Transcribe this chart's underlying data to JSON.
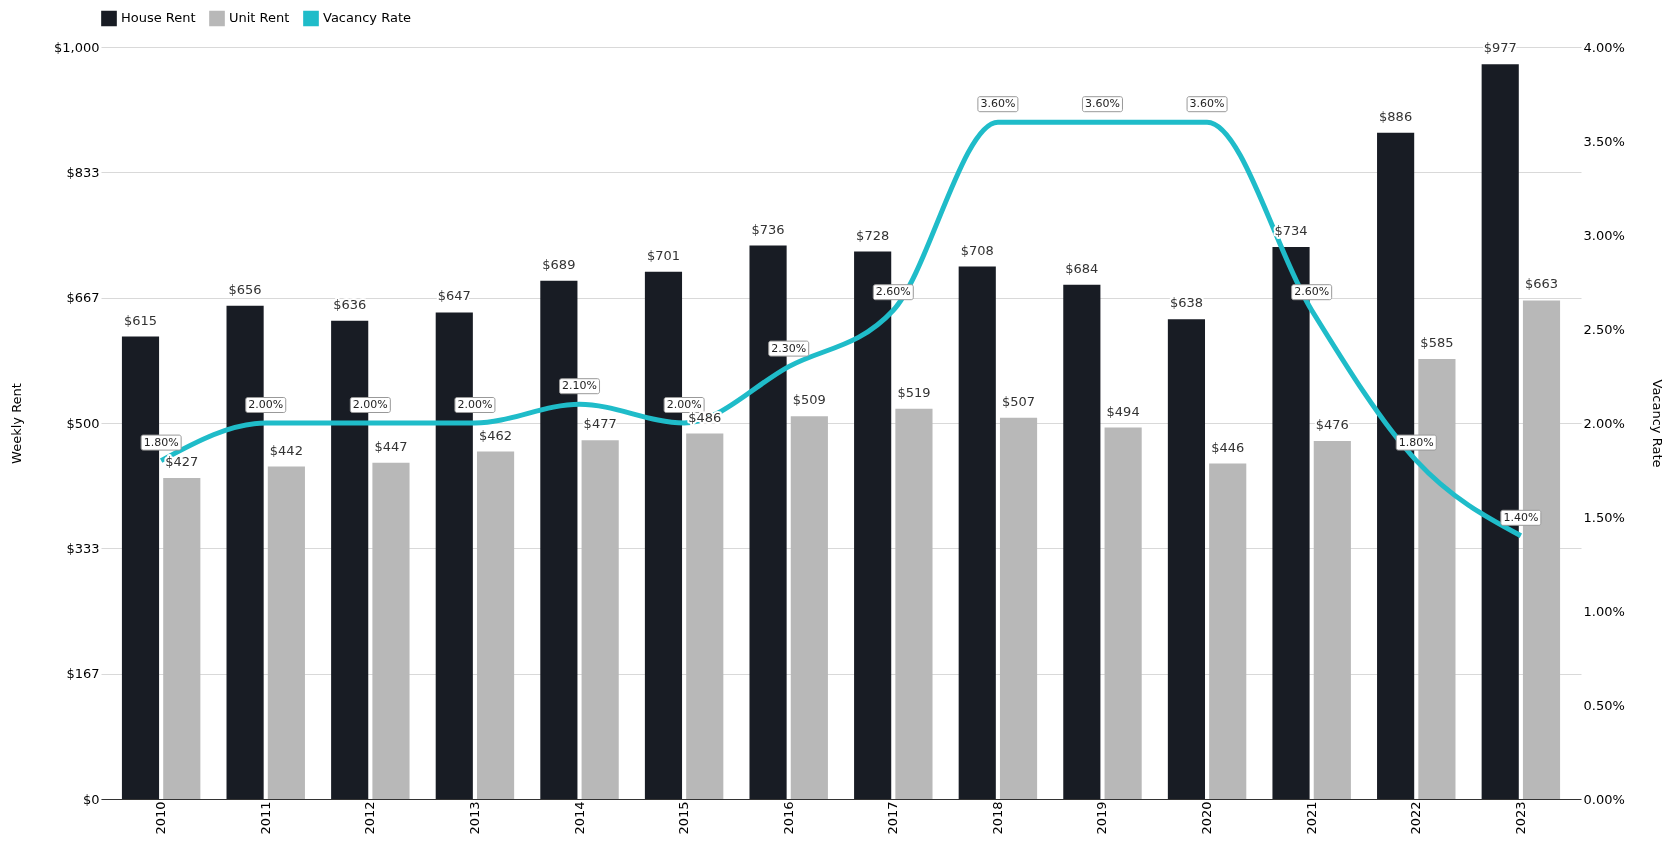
{
  "chart_data": {
    "type": "bar",
    "ylabel": "Weekly Rent",
    "y2label": "Vacancy Rate",
    "categories": [
      "2010",
      "2011",
      "2012",
      "2013",
      "2014",
      "2015",
      "2016",
      "2017",
      "2018",
      "2019",
      "2020",
      "2021",
      "2022",
      "2023"
    ],
    "series": [
      {
        "name": "House Rent",
        "type": "bar",
        "color": "#181c24",
        "values": [
          615,
          656,
          636,
          647,
          689,
          701,
          736,
          728,
          708,
          684,
          638,
          734,
          886,
          977
        ],
        "value_labels": [
          "$615",
          "$656",
          "$636",
          "$647",
          "$689",
          "$701",
          "$736",
          "$728",
          "$708",
          "$684",
          "$638",
          "$734",
          "$886",
          "$977"
        ]
      },
      {
        "name": "Unit Rent",
        "type": "bar",
        "color": "#b8b8b8",
        "values": [
          427,
          442,
          447,
          462,
          477,
          486,
          509,
          519,
          507,
          494,
          446,
          476,
          585,
          663
        ],
        "value_labels": [
          "$427",
          "$442",
          "$447",
          "$462",
          "$477",
          "$486",
          "$509",
          "$519",
          "$507",
          "$494",
          "$446",
          "$476",
          "$585",
          "$663"
        ]
      },
      {
        "name": "Vacancy Rate",
        "type": "line",
        "axis": "y2",
        "color": "#1fbcc9",
        "values": [
          1.8,
          2.0,
          2.0,
          2.0,
          2.1,
          2.0,
          2.3,
          2.6,
          3.6,
          3.6,
          3.6,
          2.6,
          1.8,
          1.4
        ],
        "value_labels": [
          "1.80%",
          "2.00%",
          "2.00%",
          "2.00%",
          "2.10%",
          "2.00%",
          "2.30%",
          "2.60%",
          "3.60%",
          "3.60%",
          "3.60%",
          "2.60%",
          "1.80%",
          "1.40%"
        ]
      }
    ],
    "ylim": [
      0,
      1000
    ],
    "yticks": [
      {
        "value": 0,
        "label": "$0"
      },
      {
        "value": 166.67,
        "label": "$167"
      },
      {
        "value": 333.33,
        "label": "$333"
      },
      {
        "value": 500,
        "label": "$500"
      },
      {
        "value": 666.67,
        "label": "$667"
      },
      {
        "value": 833.33,
        "label": "$833"
      },
      {
        "value": 1000,
        "label": "$1,000"
      }
    ],
    "y2lim": [
      0,
      4
    ],
    "y2ticks": [
      {
        "value": 0,
        "label": "0.00%"
      },
      {
        "value": 0.5,
        "label": "0.50%"
      },
      {
        "value": 1,
        "label": "1.00%"
      },
      {
        "value": 1.5,
        "label": "1.50%"
      },
      {
        "value": 2,
        "label": "2.00%"
      },
      {
        "value": 2.5,
        "label": "2.50%"
      },
      {
        "value": 3,
        "label": "3.00%"
      },
      {
        "value": 3.5,
        "label": "3.50%"
      },
      {
        "value": 4,
        "label": "4.00%"
      }
    ],
    "grid": "y",
    "legend": "top"
  }
}
